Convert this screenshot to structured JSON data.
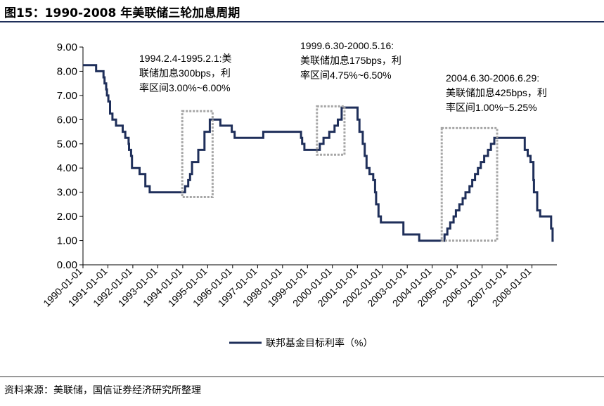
{
  "header": {
    "title": "图15：1990-2008 年美联储三轮加息周期"
  },
  "footer": {
    "source": "资料来源：美联储，国信证券经济研究所整理"
  },
  "colors": {
    "series": "#1f2f5a",
    "annotation_box": "#a6a6a6",
    "title_rule": "#1f2f5a"
  },
  "chart_data": {
    "type": "line",
    "title": "图15：1990-2008 年美联储三轮加息周期",
    "xlabel": "",
    "ylabel": "",
    "xlim": [
      "1990-01-01",
      "2008-12-31"
    ],
    "ylim": [
      0,
      9
    ],
    "yticks": [
      "0.00",
      "1.00",
      "2.00",
      "3.00",
      "4.00",
      "5.00",
      "6.00",
      "7.00",
      "8.00",
      "9.00"
    ],
    "xticks": [
      "1990-01-01",
      "1991-01-01",
      "1992-01-01",
      "1993-01-01",
      "1994-01-01",
      "1995-01-01",
      "1996-01-01",
      "1997-01-01",
      "1998-01-01",
      "1999-01-01",
      "2000-01-01",
      "2001-01-01",
      "2002-01-01",
      "2003-01-01",
      "2004-01-01",
      "2005-01-01",
      "2006-01-01",
      "2007-01-01",
      "2008-01-01"
    ],
    "grid": false,
    "legend_position": "bottom",
    "series": [
      {
        "name": "联邦基金目标利率（%）",
        "color": "#1f2f5a",
        "step": true,
        "points": [
          [
            "1990-01-01",
            8.25
          ],
          [
            "1990-07-13",
            8.0
          ],
          [
            "1990-10-29",
            7.75
          ],
          [
            "1990-11-13",
            7.5
          ],
          [
            "1990-12-07",
            7.25
          ],
          [
            "1990-12-18",
            7.0
          ],
          [
            "1991-01-08",
            6.75
          ],
          [
            "1991-02-01",
            6.25
          ],
          [
            "1991-03-08",
            6.0
          ],
          [
            "1991-04-30",
            5.75
          ],
          [
            "1991-08-06",
            5.5
          ],
          [
            "1991-09-13",
            5.25
          ],
          [
            "1991-10-31",
            5.0
          ],
          [
            "1991-11-06",
            4.75
          ],
          [
            "1991-12-06",
            4.5
          ],
          [
            "1991-12-20",
            4.0
          ],
          [
            "1992-04-09",
            3.75
          ],
          [
            "1992-07-02",
            3.25
          ],
          [
            "1992-09-04",
            3.0
          ],
          [
            "1994-02-04",
            3.25
          ],
          [
            "1994-03-22",
            3.5
          ],
          [
            "1994-04-18",
            3.75
          ],
          [
            "1994-05-17",
            4.25
          ],
          [
            "1994-08-16",
            4.75
          ],
          [
            "1994-11-15",
            5.5
          ],
          [
            "1995-02-01",
            6.0
          ],
          [
            "1995-07-06",
            5.75
          ],
          [
            "1995-12-19",
            5.5
          ],
          [
            "1996-01-31",
            5.25
          ],
          [
            "1997-03-25",
            5.5
          ],
          [
            "1998-09-29",
            5.25
          ],
          [
            "1998-10-15",
            5.0
          ],
          [
            "1998-11-17",
            4.75
          ],
          [
            "1999-06-30",
            5.0
          ],
          [
            "1999-08-24",
            5.25
          ],
          [
            "1999-11-16",
            5.5
          ],
          [
            "2000-02-02",
            5.75
          ],
          [
            "2000-03-21",
            6.0
          ],
          [
            "2000-05-16",
            6.5
          ],
          [
            "2001-01-03",
            6.0
          ],
          [
            "2001-01-31",
            5.5
          ],
          [
            "2001-03-20",
            5.0
          ],
          [
            "2001-04-18",
            4.5
          ],
          [
            "2001-05-15",
            4.0
          ],
          [
            "2001-06-27",
            3.75
          ],
          [
            "2001-08-21",
            3.5
          ],
          [
            "2001-09-17",
            3.0
          ],
          [
            "2001-10-02",
            2.5
          ],
          [
            "2001-11-06",
            2.0
          ],
          [
            "2001-12-11",
            1.75
          ],
          [
            "2002-11-06",
            1.25
          ],
          [
            "2003-06-25",
            1.0
          ],
          [
            "2004-06-30",
            1.25
          ],
          [
            "2004-08-10",
            1.5
          ],
          [
            "2004-09-21",
            1.75
          ],
          [
            "2004-11-10",
            2.0
          ],
          [
            "2004-12-14",
            2.25
          ],
          [
            "2005-02-02",
            2.5
          ],
          [
            "2005-03-22",
            2.75
          ],
          [
            "2005-05-03",
            3.0
          ],
          [
            "2005-06-30",
            3.25
          ],
          [
            "2005-08-09",
            3.5
          ],
          [
            "2005-09-20",
            3.75
          ],
          [
            "2005-11-01",
            4.0
          ],
          [
            "2005-12-13",
            4.25
          ],
          [
            "2006-01-31",
            4.5
          ],
          [
            "2006-03-28",
            4.75
          ],
          [
            "2006-05-10",
            5.0
          ],
          [
            "2006-06-29",
            5.25
          ],
          [
            "2007-09-18",
            4.75
          ],
          [
            "2007-10-31",
            4.5
          ],
          [
            "2007-12-11",
            4.25
          ],
          [
            "2008-01-22",
            3.5
          ],
          [
            "2008-01-30",
            3.0
          ],
          [
            "2008-03-18",
            2.25
          ],
          [
            "2008-04-30",
            2.0
          ],
          [
            "2008-10-08",
            1.5
          ],
          [
            "2008-10-29",
            1.0
          ],
          [
            "2008-11-15",
            1.0
          ]
        ]
      }
    ],
    "annotations": [
      {
        "text": [
          "1994.2.4-1995.2.1:美",
          "联储加息300bps，利",
          "率区间3.00%~6.00%"
        ],
        "box": {
          "x0": "1994-02-04",
          "x1": "1995-02-01",
          "y0": 2.8,
          "y1": 6.35
        }
      },
      {
        "text": [
          "1999.6.30-2000.5.16:",
          "美联储加息175bps，利",
          "率区间4.75%~6.50%"
        ],
        "box": {
          "x0": "1999-06-30",
          "x1": "2000-05-16",
          "y0": 4.55,
          "y1": 6.55
        }
      },
      {
        "text": [
          "2004.6.30-2006.6.29:",
          "美联储加息425bps，利",
          "率区间1.00%~5.25%"
        ],
        "box": {
          "x0": "2004-06-30",
          "x1": "2006-06-29",
          "y0": 1.0,
          "y1": 5.65
        }
      }
    ]
  }
}
